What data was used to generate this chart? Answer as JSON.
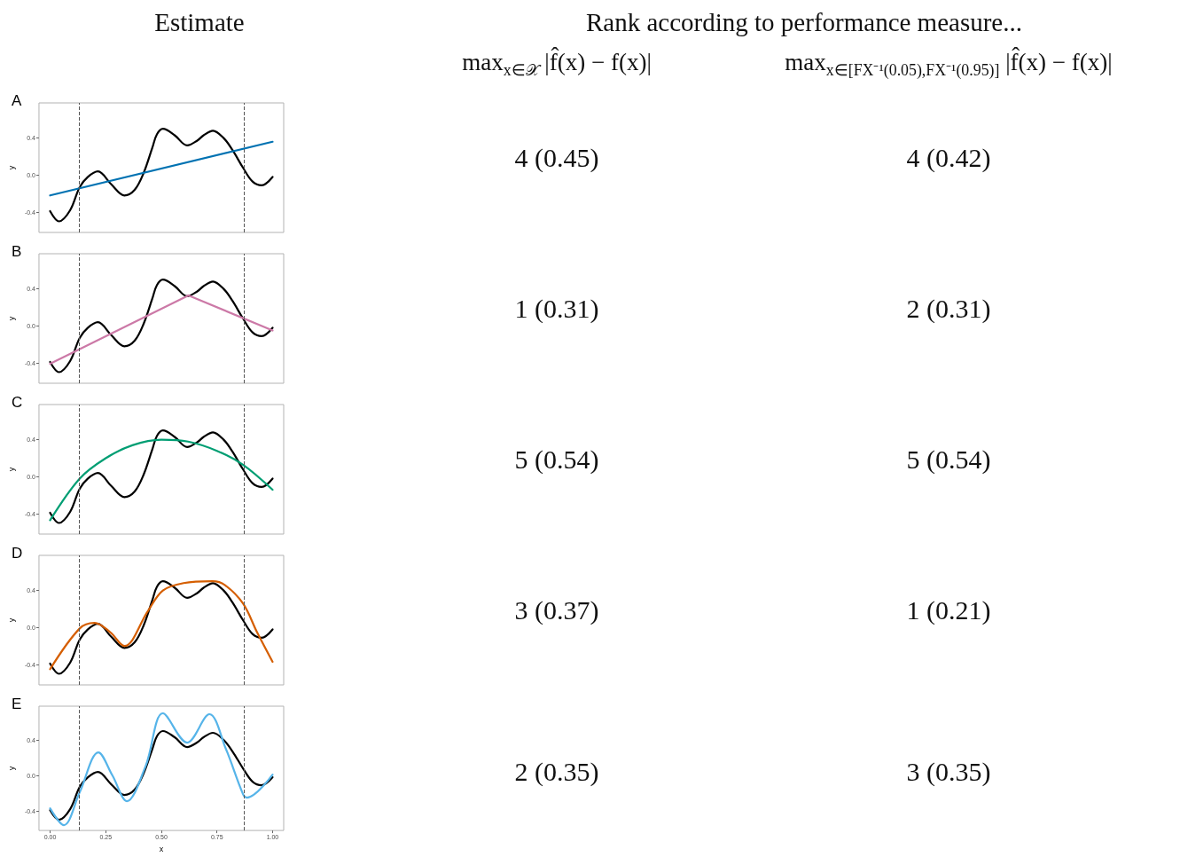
{
  "chart_data": [
    {
      "type": "line",
      "title": "A",
      "ylabel": "y",
      "xlim": [
        -0.05,
        1.05
      ],
      "ylim": [
        -0.62,
        0.78
      ],
      "yticks": [
        {
          "value": -0.4,
          "label": "-0.4"
        },
        {
          "value": 0,
          "label": "0.0"
        },
        {
          "value": 0.4,
          "label": "0.4"
        }
      ],
      "tick_labels": "y",
      "grid": false,
      "marker": "none",
      "ref_lines": [
        {
          "axis": "x",
          "value": 0.133,
          "line_style": "dashed",
          "color": "#555555"
        },
        {
          "axis": "x",
          "value": 0.867,
          "line_style": "dashed",
          "color": "#555555"
        }
      ],
      "series": [
        {
          "color": "#000000",
          "x": [
            0,
            0.04,
            0.09,
            0.133,
            0.17,
            0.215,
            0.275,
            0.334,
            0.38,
            0.42,
            0.46,
            0.48,
            0.507,
            0.56,
            0.616,
            0.66,
            0.69,
            0.732,
            0.78,
            0.82,
            0.867,
            0.91,
            0.951,
            1
          ],
          "values": [
            -0.39,
            -0.5,
            -0.38,
            -0.13,
            -0.02,
            0.04,
            -0.1,
            -0.22,
            -0.16,
            0.02,
            0.3,
            0.44,
            0.5,
            0.43,
            0.32,
            0.37,
            0.43,
            0.48,
            0.4,
            0.27,
            0.08,
            -0.07,
            -0.11,
            -0.02
          ]
        },
        {
          "color": "#0072b2",
          "x": [
            0,
            1
          ],
          "values": [
            -0.22,
            0.36
          ]
        }
      ]
    },
    {
      "type": "line",
      "title": "B",
      "ylabel": "y",
      "xlim": [
        -0.05,
        1.05
      ],
      "ylim": [
        -0.62,
        0.78
      ],
      "yticks": [
        {
          "value": -0.4,
          "label": "-0.4"
        },
        {
          "value": 0,
          "label": "0.0"
        },
        {
          "value": 0.4,
          "label": "0.4"
        }
      ],
      "tick_labels": "y",
      "grid": false,
      "marker": "none",
      "ref_lines": [
        {
          "axis": "x",
          "value": 0.133,
          "line_style": "dashed",
          "color": "#555555"
        },
        {
          "axis": "x",
          "value": 0.867,
          "line_style": "dashed",
          "color": "#555555"
        }
      ],
      "series": [
        {
          "color": "#000000",
          "x": [
            0,
            0.04,
            0.09,
            0.133,
            0.17,
            0.215,
            0.275,
            0.334,
            0.38,
            0.42,
            0.46,
            0.48,
            0.507,
            0.56,
            0.616,
            0.66,
            0.69,
            0.732,
            0.78,
            0.82,
            0.867,
            0.91,
            0.951,
            1
          ],
          "values": [
            -0.39,
            -0.5,
            -0.38,
            -0.13,
            -0.02,
            0.04,
            -0.1,
            -0.22,
            -0.16,
            0.02,
            0.3,
            0.44,
            0.5,
            0.43,
            0.32,
            0.37,
            0.43,
            0.48,
            0.4,
            0.27,
            0.08,
            -0.07,
            -0.11,
            -0.02
          ]
        },
        {
          "color": "#cc79a7",
          "x": [
            0,
            0.622,
            1
          ],
          "values": [
            -0.41,
            0.33,
            -0.05
          ]
        }
      ]
    },
    {
      "type": "line",
      "title": "C",
      "ylabel": "y",
      "xlim": [
        -0.05,
        1.05
      ],
      "ylim": [
        -0.62,
        0.78
      ],
      "yticks": [
        {
          "value": -0.4,
          "label": "-0.4"
        },
        {
          "value": 0,
          "label": "0.0"
        },
        {
          "value": 0.4,
          "label": "0.4"
        }
      ],
      "tick_labels": "y",
      "grid": false,
      "marker": "none",
      "ref_lines": [
        {
          "axis": "x",
          "value": 0.133,
          "line_style": "dashed",
          "color": "#555555"
        },
        {
          "axis": "x",
          "value": 0.867,
          "line_style": "dashed",
          "color": "#555555"
        }
      ],
      "series": [
        {
          "color": "#000000",
          "x": [
            0,
            0.04,
            0.09,
            0.133,
            0.17,
            0.215,
            0.275,
            0.334,
            0.38,
            0.42,
            0.46,
            0.48,
            0.507,
            0.56,
            0.616,
            0.66,
            0.69,
            0.732,
            0.78,
            0.82,
            0.867,
            0.91,
            0.951,
            1
          ],
          "values": [
            -0.39,
            -0.5,
            -0.38,
            -0.13,
            -0.02,
            0.04,
            -0.1,
            -0.22,
            -0.16,
            0.02,
            0.3,
            0.44,
            0.5,
            0.43,
            0.32,
            0.37,
            0.43,
            0.48,
            0.4,
            0.27,
            0.08,
            -0.07,
            -0.11,
            -0.02
          ]
        },
        {
          "color": "#009e73",
          "x": [
            0,
            0.133,
            0.25,
            0.37,
            0.5,
            0.62,
            0.75,
            0.867,
            1
          ],
          "values": [
            -0.47,
            -0.02,
            0.2,
            0.34,
            0.4,
            0.38,
            0.28,
            0.13,
            -0.14
          ]
        }
      ]
    },
    {
      "type": "line",
      "title": "D",
      "ylabel": "y",
      "xlim": [
        -0.05,
        1.05
      ],
      "ylim": [
        -0.62,
        0.78
      ],
      "yticks": [
        {
          "value": -0.4,
          "label": "-0.4"
        },
        {
          "value": 0,
          "label": "0.0"
        },
        {
          "value": 0.4,
          "label": "0.4"
        }
      ],
      "tick_labels": "y",
      "grid": false,
      "marker": "none",
      "ref_lines": [
        {
          "axis": "x",
          "value": 0.133,
          "line_style": "dashed",
          "color": "#555555"
        },
        {
          "axis": "x",
          "value": 0.867,
          "line_style": "dashed",
          "color": "#555555"
        }
      ],
      "series": [
        {
          "color": "#000000",
          "x": [
            0,
            0.04,
            0.09,
            0.133,
            0.17,
            0.215,
            0.275,
            0.334,
            0.38,
            0.42,
            0.46,
            0.48,
            0.507,
            0.56,
            0.616,
            0.66,
            0.69,
            0.732,
            0.78,
            0.82,
            0.867,
            0.91,
            0.951,
            1
          ],
          "values": [
            -0.39,
            -0.5,
            -0.38,
            -0.13,
            -0.02,
            0.04,
            -0.1,
            -0.22,
            -0.16,
            0.02,
            0.3,
            0.44,
            0.5,
            0.43,
            0.32,
            0.37,
            0.43,
            0.48,
            0.4,
            0.27,
            0.08,
            -0.07,
            -0.11,
            -0.02
          ]
        },
        {
          "color": "#d55e00",
          "x": [
            0,
            0.133,
            0.2,
            0.27,
            0.334,
            0.44,
            0.507,
            0.6,
            0.73,
            0.785,
            0.867,
            0.93,
            1
          ],
          "values": [
            -0.45,
            -0.01,
            0.05,
            -0.05,
            -0.2,
            0.18,
            0.4,
            0.48,
            0.5,
            0.46,
            0.26,
            -0.05,
            -0.37
          ]
        }
      ]
    },
    {
      "type": "line",
      "title": "E",
      "xlabel": "x",
      "ylabel": "y",
      "xlim": [
        -0.05,
        1.05
      ],
      "ylim": [
        -0.62,
        0.78
      ],
      "xticks": [
        {
          "value": 0,
          "label": "0.00"
        },
        {
          "value": 0.25,
          "label": "0.25"
        },
        {
          "value": 0.5,
          "label": "0.50"
        },
        {
          "value": 0.75,
          "label": "0.75"
        },
        {
          "value": 1,
          "label": "1.00"
        }
      ],
      "yticks": [
        {
          "value": -0.4,
          "label": "-0.4"
        },
        {
          "value": 0,
          "label": "0.0"
        },
        {
          "value": 0.4,
          "label": "0.4"
        }
      ],
      "grid": false,
      "marker": "none",
      "ref_lines": [
        {
          "axis": "x",
          "value": 0.133,
          "line_style": "dashed",
          "color": "#555555"
        },
        {
          "axis": "x",
          "value": 0.867,
          "line_style": "dashed",
          "color": "#555555"
        }
      ],
      "series": [
        {
          "color": "#000000",
          "x": [
            0,
            0.04,
            0.09,
            0.133,
            0.17,
            0.215,
            0.275,
            0.334,
            0.38,
            0.42,
            0.46,
            0.48,
            0.507,
            0.56,
            0.616,
            0.66,
            0.69,
            0.732,
            0.78,
            0.82,
            0.867,
            0.91,
            0.951,
            1
          ],
          "values": [
            -0.39,
            -0.5,
            -0.38,
            -0.13,
            -0.02,
            0.04,
            -0.1,
            -0.22,
            -0.16,
            0.02,
            0.3,
            0.44,
            0.5,
            0.43,
            0.32,
            0.37,
            0.43,
            0.48,
            0.4,
            0.27,
            0.08,
            -0.07,
            -0.11,
            -0.02
          ]
        },
        {
          "color": "#56b4e9",
          "x": [
            0,
            0.062,
            0.133,
            0.217,
            0.28,
            0.345,
            0.43,
            0.507,
            0.616,
            0.716,
            0.79,
            0.867,
            0.885,
            1
          ],
          "values": [
            -0.37,
            -0.56,
            -0.19,
            0.26,
            0.0,
            -0.29,
            0.11,
            0.7,
            0.37,
            0.69,
            0.3,
            -0.21,
            -0.25,
            0.01
          ]
        }
      ]
    },
    {
      "type": "other",
      "title": "Rank according to performance measure...",
      "annotations": [
        "Estimate",
        "max$_{x∈𝒳}$ |f̂(x) − f(x)|",
        "max$_{x∈[F}$$_{X}$$_{⁻¹(0.05),F}$$_{X}$$_{⁻¹(0.95)]}$ |f̂(x) − f(x)|",
        "4 (0.45)",
        "4 (0.42)",
        "1 (0.31)",
        "2 (0.31)",
        "5 (0.54)",
        "5 (0.54)",
        "3 (0.37)",
        "1 (0.21)",
        "2 (0.35)",
        "3 (0.35)"
      ]
    }
  ]
}
